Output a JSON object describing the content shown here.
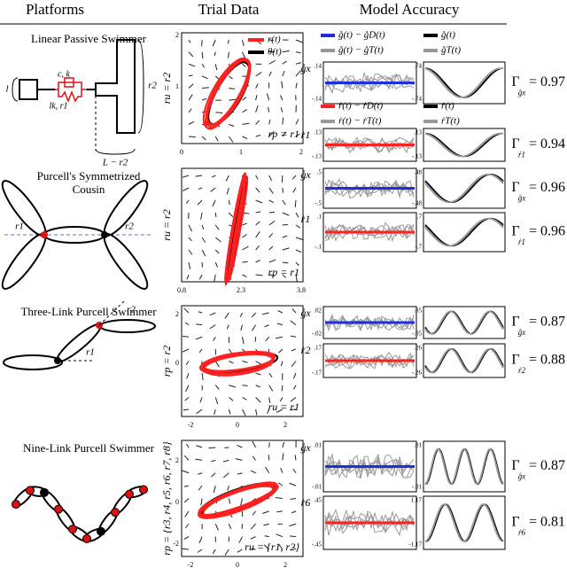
{
  "header": {
    "platforms": "Platforms",
    "trial_data": "Trial Data",
    "model_accuracy": "Model Accuracy"
  },
  "rows": [
    {
      "platform": [
        "Linear Passive Swimmer"
      ],
      "diagram_labels": [
        "l",
        "c, k",
        "lk, r1",
        "r2",
        "L − r2"
      ],
      "trial": {
        "y_label": "ru = r2",
        "annotation": "rp = r1",
        "xticks": [
          "0",
          "1",
          "2"
        ],
        "yticks": [
          "2",
          "1"
        ],
        "legend": [
          {
            "text": "r(t)",
            "color": "#ff2020"
          },
          {
            "text": "θ(t)",
            "color": "#000000"
          }
        ]
      },
      "accuracy": {
        "legends": [
          [
            {
              "text": "g̊(t) − g̊D(t)",
              "color": "#1f2fe0"
            },
            {
              "text": "g̊(t)",
              "color": "#000000"
            },
            {
              "text": "g̊(t) − g̊T(t)",
              "color": "#999999"
            },
            {
              "text": "g̊T(t)",
              "color": "#999999"
            }
          ],
          [
            {
              "text": "ṙ(t) − ṙD(t)",
              "color": "#ff2020"
            },
            {
              "text": "ṙ(t)",
              "color": "#000000"
            },
            {
              "text": "ṙ(t) − ṙT(t)",
              "color": "#999999"
            },
            {
              "text": "ṙT(t)",
              "color": "#999999"
            }
          ]
        ],
        "panels": [
          {
            "label": "g̊x",
            "left_ticks": [
              ".14",
              "-.14"
            ],
            "right_ticks": [
              ".74",
              "-.74"
            ],
            "gamma": {
              "symbol": "Γ",
              "sub": "g̊x",
              "value": "= 0.97"
            }
          },
          {
            "label": "ṙ1",
            "left_ticks": [
              ".13",
              "-.13"
            ],
            "right_ticks": [
              ".13",
              "-.13"
            ],
            "gamma": {
              "symbol": "Γ",
              "sub": "ṙ1",
              "value": "= 0.94"
            }
          }
        ]
      }
    },
    {
      "platform": [
        "Purcell's Symmetrized",
        "Cousin"
      ],
      "diagram_labels": [
        "r1",
        "r2"
      ],
      "trial": {
        "y_label": "ru = r2",
        "annotation": "rp = r1",
        "xticks": [
          "0.8",
          "2.3",
          "3.8"
        ],
        "yticks": []
      },
      "accuracy": {
        "panels": [
          {
            "label": "g̊x",
            "left_ticks": [
              ".5",
              "-.5"
            ],
            "right_ticks": [
              ".48",
              "-.48"
            ],
            "gamma": {
              "symbol": "Γ",
              "sub": "g̊x",
              "value": "= 0.96"
            }
          },
          {
            "label": "ṙ1",
            "left_ticks": [
              ".1",
              "-.1"
            ],
            "right_ticks": [
              ".7",
              "-.7"
            ],
            "gamma": {
              "symbol": "Γ",
              "sub": "ṙ1",
              "value": "= 0.96"
            }
          }
        ]
      }
    },
    {
      "platform": [
        "Three-Link Purcell Swimmer"
      ],
      "diagram_labels": [
        "r2",
        "r1"
      ],
      "trial": {
        "y_label": "rp = r2",
        "annotation": "ru = r1",
        "xticks": [
          "-2",
          "0",
          "2"
        ],
        "yticks": [
          "2",
          "0"
        ]
      },
      "accuracy": {
        "panels": [
          {
            "label": "g̊x",
            "left_ticks": [
              ".02",
              "-.02"
            ],
            "right_ticks": [
              ".05",
              "-.05"
            ],
            "gamma": {
              "symbol": "Γ",
              "sub": "g̊x",
              "value": "= 0.87"
            }
          },
          {
            "label": "ṙ2",
            "left_ticks": [
              ".17",
              "-.17"
            ],
            "right_ticks": [
              ".26",
              "-.26"
            ],
            "gamma": {
              "symbol": "Γ",
              "sub": "ṙ2",
              "value": "= 0.88"
            }
          }
        ]
      }
    },
    {
      "platform": [
        "Nine-Link Purcell Swimmer"
      ],
      "diagram_labels": [],
      "trial": {
        "y_label": "rp = {r3, r4, r5, r6, r7, r8}",
        "annotation": "ru = {r1, r2}",
        "xticks": [
          "-2",
          "0",
          "2"
        ],
        "yticks": [
          "2",
          "0",
          "-2"
        ]
      },
      "accuracy": {
        "panels": [
          {
            "label": "g̊x",
            "left_ticks": [
              ".01",
              "-.01"
            ],
            "right_ticks": [
              ".01",
              "-.01"
            ],
            "gamma": {
              "symbol": "Γ",
              "sub": "g̊x",
              "value": "= 0.87"
            }
          },
          {
            "label": "ṙ6",
            "left_ticks": [
              ".45",
              "-.45"
            ],
            "right_ticks": [
              "1.17",
              "-1.17"
            ],
            "gamma": {
              "symbol": "Γ",
              "sub": "ṙ6",
              "value": "= 0.81"
            }
          }
        ]
      }
    }
  ]
}
